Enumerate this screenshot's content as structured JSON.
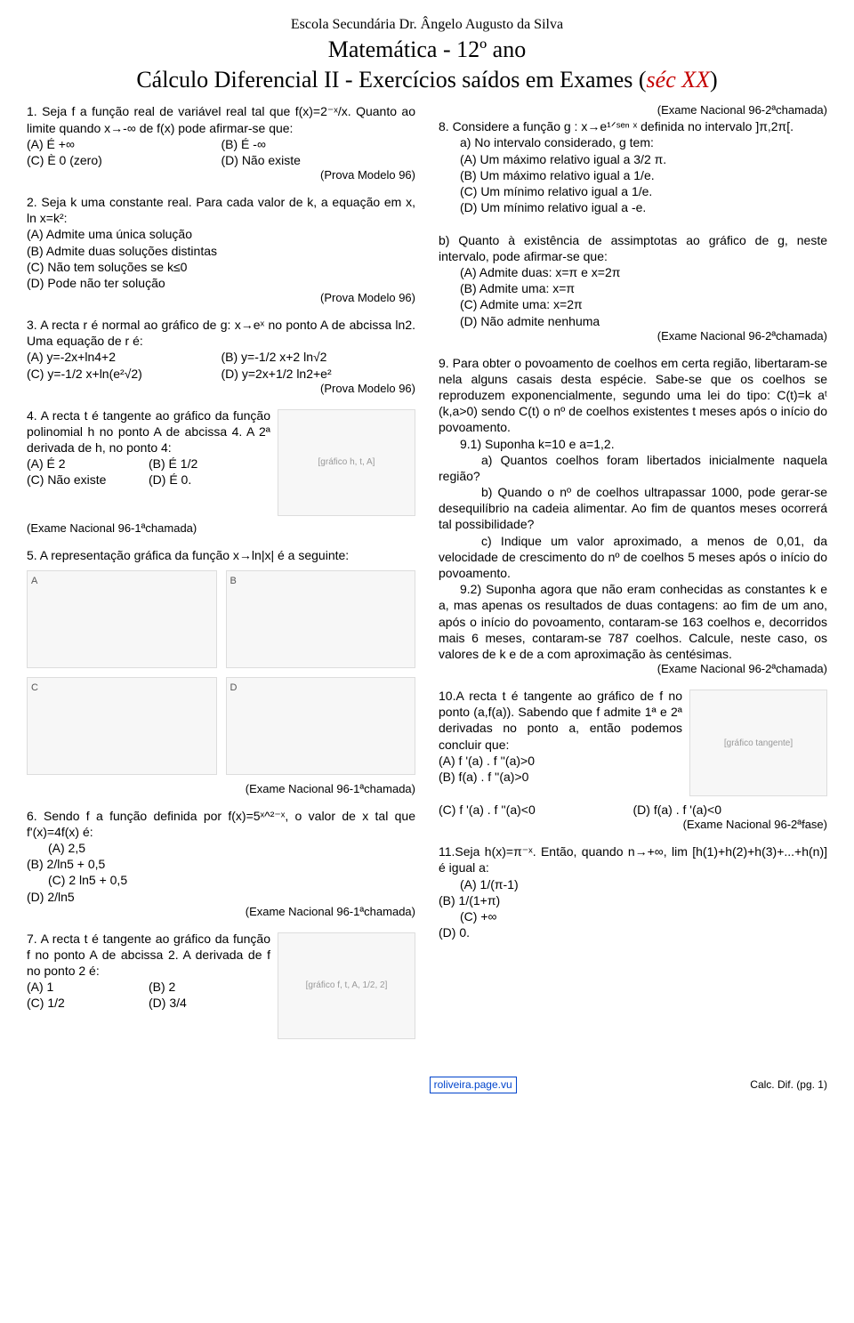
{
  "header": {
    "school": "Escola Secundária Dr. Ângelo Augusto da Silva",
    "subject": "Matemática - 12º ano",
    "title_plain": "Cálculo Diferencial II - Exercícios saídos em Exames (",
    "title_red": "séc XX",
    "title_close": ")"
  },
  "left": {
    "q1": {
      "prompt": "1. Seja f a função real de variável real tal que f(x)=2⁻ˣ/x. Quanto ao limite quando x→-∞ de f(x) pode afirmar-se que:",
      "optA": "(A) É +∞",
      "optB": "(B) É -∞",
      "optC": "(C) È 0 (zero)",
      "optD": "(D) Não existe",
      "src": "(Prova Modelo 96)"
    },
    "q2": {
      "prompt": "2. Seja k uma constante real. Para cada valor de k, a equação em x, ln x=k²:",
      "optA": "(A) Admite uma única solução",
      "optB": "(B) Admite duas soluções distintas",
      "optC": "(C) Não tem soluções se k≤0",
      "optD": "(D) Pode não ter solução",
      "src": "(Prova Modelo 96)"
    },
    "q3": {
      "prompt": "3. A recta r é normal ao gráfico de g: x→eˣ no ponto A de abcissa ln2. Uma equação de r é:",
      "optA": "(A) y=-2x+ln4+2",
      "optB": "(B) y=-1/2 x+2 ln√2",
      "optC": "(C) y=-1/2 x+ln(e²√2)",
      "optD": "(D) y=2x+1/2 ln2+e²",
      "src": "(Prova Modelo 96)"
    },
    "q4": {
      "prompt": "4. A recta t é tangente ao gráfico da função polinomial h no ponto A de abcissa 4. A 2ª derivada de h, no ponto 4:",
      "optA": "(A) É 2",
      "optB": "(B) É 1/2",
      "optC": "(C) Não existe",
      "optD": "(D) É 0.",
      "src": "(Exame Nacional 96-1ªchamada)",
      "fig": "[gráfico h, t, A]"
    },
    "q5": {
      "prompt": "5. A representação gráfica da função x→ln|x| é a seguinte:",
      "cellA": "A",
      "cellB": "B",
      "cellC": "C",
      "cellD": "D",
      "src": "(Exame Nacional 96-1ªchamada)"
    },
    "q6": {
      "prompt": "6. Sendo f a função definida por f(x)=5ˣ^²⁻ˣ, o valor de x tal que f'(x)=4f(x) é:",
      "optA": "(A) 2,5",
      "optB": "(B) 2/ln5 + 0,5",
      "optC": "(C) 2 ln5 + 0,5",
      "optD": "(D) 2/ln5",
      "src": "(Exame Nacional 96-1ªchamada)"
    },
    "q7": {
      "prompt": "7. A recta t é tangente ao gráfico da função f no ponto A de abcissa 2. A derivada de f no ponto 2 é:",
      "optA": "(A) 1",
      "optB": "(B) 2",
      "optC": "(C) 1/2",
      "optD": "(D) 3/4",
      "fig": "[gráfico f, t, A, 1/2, 2]"
    }
  },
  "right": {
    "srcTop": "(Exame Nacional 96-2ªchamada)",
    "q8": {
      "prompt": "8. Considere a função g : x→e¹ᐟˢᵉⁿ ˣ definida no intervalo ]π,2π[.",
      "a_intro": "a) No intervalo considerado, g tem:",
      "a_A": "(A) Um máximo relativo igual a 3/2 π.",
      "a_B": "(B) Um máximo relativo igual a 1/e.",
      "a_C": "(C) Um mínimo relativo igual a 1/e.",
      "a_D": "(D) Um mínimo relativo igual a -e.",
      "b_intro": "b) Quanto à existência de assimptotas ao gráfico de g, neste intervalo, pode afirmar-se que:",
      "b_A": "(A) Admite duas: x=π   e   x=2π",
      "b_B": "(B) Admite uma: x=π",
      "b_C": "(C) Admite uma: x=2π",
      "b_D": "(D) Não admite nenhuma",
      "src": "(Exame Nacional 96-2ªchamada)"
    },
    "q9": {
      "intro": "9. Para obter o povoamento de coelhos em certa região, libertaram-se nela alguns casais desta espécie. Sabe-se que os coelhos se reproduzem exponencialmente, segundo uma lei do tipo: C(t)=k aᵗ (k,a>0) sendo C(t) o nº de coelhos existentes t meses após o início do povoamento.",
      "p91": "9.1) Suponha k=10 e a=1,2.",
      "p91a": "a) Quantos coelhos foram libertados inicialmente naquela região?",
      "p91b": "b) Quando o nº de coelhos ultrapassar 1000, pode gerar-se desequilíbrio na cadeia alimentar. Ao fim de quantos meses ocorrerá tal possibilidade?",
      "p91c": "c) Indique um valor aproximado, a menos de 0,01, da velocidade de crescimento do nº de coelhos 5 meses após o início do povoamento.",
      "p92": "9.2) Suponha agora que não eram conhecidas as constantes k e a, mas apenas os resultados de duas contagens: ao fim de um ano, após o início do povoamento, contaram-se 163 coelhos e, decorridos mais 6 meses, contaram-se 787 coelhos. Calcule, neste caso, os valores de k e de a com aproximação às centésimas.",
      "src": "(Exame Nacional 96-2ªchamada)"
    },
    "q10": {
      "prompt": "10.A recta t é tangente ao gráfico de f no ponto (a,f(a)). Sabendo que f admite 1ª e 2ª derivadas no ponto a, então podemos concluir que:",
      "optA": "(A) f '(a) . f ''(a)>0",
      "optB": "(B) f(a) . f ''(a)>0",
      "optC": "(C) f '(a) . f ''(a)<0",
      "optD": "(D) f(a) . f '(a)<0",
      "src": "(Exame Nacional 96-2ªfase)",
      "fig": "[gráfico tangente]"
    },
    "q11": {
      "prompt": "11.Seja h(x)=π⁻ˣ. Então, quando n→+∞, lim [h(1)+h(2)+h(3)+...+h(n)] é igual a:",
      "optA": "(A) 1/(π-1)",
      "optB": "(B) 1/(1+π)",
      "optC": "(C) +∞",
      "optD": "(D) 0."
    }
  },
  "footer": {
    "link": "roliveira.page.vu",
    "page": "Calc. Dif. (pg. 1)"
  }
}
